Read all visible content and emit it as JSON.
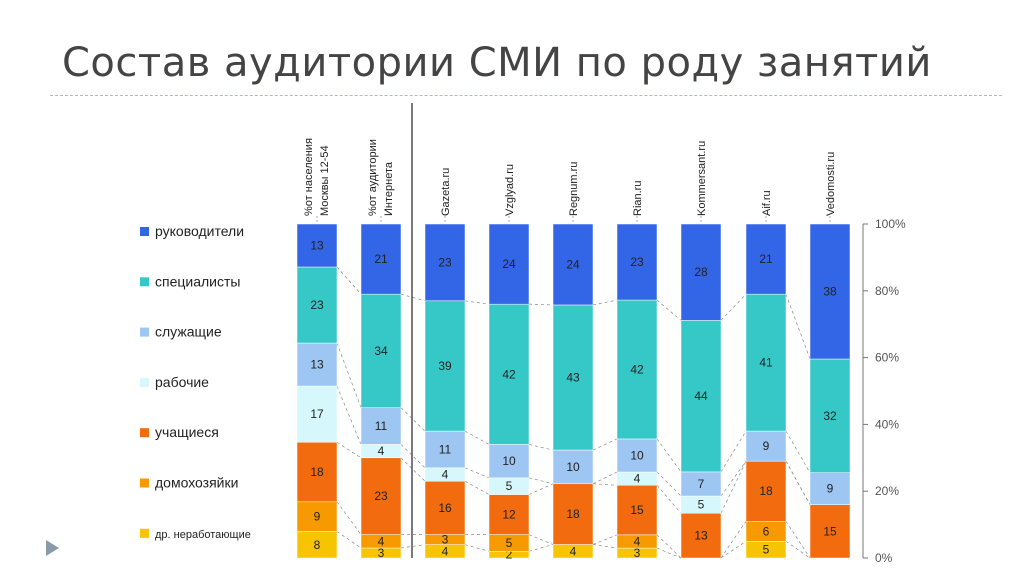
{
  "slide": {
    "title": "Состав аудитории СМИ по роду занятий"
  },
  "chart_data": {
    "type": "bar",
    "stacked": true,
    "percent": true,
    "title": "Состав аудитории СМИ по роду занятий",
    "categories": [
      "%от населения\nМосквы 12-54",
      "%от аудитории\nИнтернета",
      "Gazeta.ru",
      "Vzglyad.ru",
      "Regnum.ru",
      "Rian.ru",
      "Kommersant.ru",
      "Aif.ru",
      "Vedomosti.ru"
    ],
    "series": [
      {
        "name": "др. неработающие",
        "color": "#f7c500",
        "values": [
          8,
          3,
          4,
          2,
          4,
          3,
          0,
          5,
          0
        ]
      },
      {
        "name": "домохозяйки",
        "color": "#f79a00",
        "values": [
          9,
          4,
          3,
          5,
          0,
          4,
          0,
          6,
          0
        ]
      },
      {
        "name": "учащиеся",
        "color": "#f26b0f",
        "values": [
          18,
          23,
          16,
          12,
          18,
          15,
          13,
          18,
          15
        ]
      },
      {
        "name": "рабочие",
        "color": "#d6f7fb",
        "values": [
          17,
          4,
          4,
          5,
          0,
          4,
          5,
          0,
          0
        ]
      },
      {
        "name": "служащие",
        "color": "#9ec6f2",
        "values": [
          13,
          11,
          11,
          10,
          10,
          10,
          7,
          9,
          9
        ]
      },
      {
        "name": "специалисты",
        "color": "#35c8c6",
        "values": [
          23,
          34,
          39,
          42,
          43,
          42,
          44,
          41,
          32
        ]
      },
      {
        "name": "руководители",
        "color": "#3366e6",
        "values": [
          13,
          21,
          23,
          24,
          24,
          23,
          28,
          21,
          38
        ]
      }
    ],
    "ylim": [
      0,
      100
    ],
    "yticks": [
      "0%",
      "20%",
      "40%",
      "60%",
      "80%",
      "100%"
    ],
    "legend_position": "left"
  }
}
